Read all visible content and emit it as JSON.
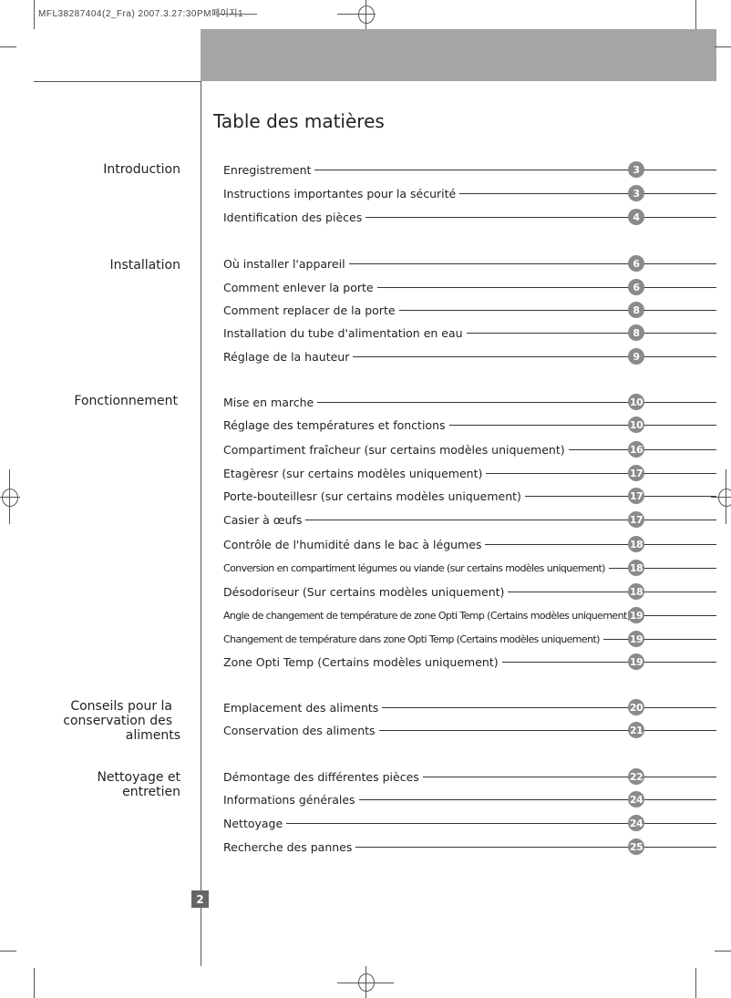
{
  "print_header": "MFL38287404(2_Fra) 2007.3.27:30PM페이지1",
  "title": "Table des matières",
  "page_number": "2",
  "colors": {
    "band": "#a5a5a5",
    "badge": "#8a8a8a",
    "page_badge": "#666666"
  },
  "sections": [
    {
      "label": "Introduction",
      "entries": [
        {
          "text": "Enregistrement",
          "page": "3"
        },
        {
          "text": "Instructions importantes pour la sécurité",
          "page": "3"
        },
        {
          "text": "Identification des pièces",
          "page": "4"
        }
      ]
    },
    {
      "label": "Installation",
      "entries": [
        {
          "text": "Où installer l'appareil",
          "page": "6"
        },
        {
          "text": "Comment enlever la porte",
          "page": "6"
        },
        {
          "text": "Comment replacer de la porte",
          "page": "8"
        },
        {
          "text": "Installation du tube d'alimentation en eau",
          "page": "8"
        },
        {
          "text": "Réglage de la hauteur",
          "page": "9"
        }
      ]
    },
    {
      "label": "Fonctionnement",
      "entries": [
        {
          "text": "Mise en marche",
          "page": "10"
        },
        {
          "text": "Réglage des températures et fonctions",
          "page": "10"
        },
        {
          "text": "Compartiment fraîcheur (sur certains modèles uniquement)",
          "page": "16"
        },
        {
          "text": "Etagèresr (sur certains modèles uniquement)",
          "page": "17"
        },
        {
          "text": "Porte-bouteillesr (sur certains modèles uniquement)",
          "page": "17"
        },
        {
          "text": "Casier à œufs",
          "page": "17"
        },
        {
          "text": "Contrôle de l'humidité dans le bac à légumes",
          "page": "18"
        },
        {
          "text": "Conversion en compartiment légumes ou viande (sur certains modèles uniquement)",
          "page": "18"
        },
        {
          "text": "Désodoriseur (Sur certains modèles uniquement)",
          "page": "18"
        },
        {
          "text": "Angle de changement de température de zone Opti Temp (Certains modèles uniquement)",
          "page": "19"
        },
        {
          "text": "Changement de température dans zone Opti Temp (Certains modèles uniquement)",
          "page": "19"
        },
        {
          "text": "Zone Opti Temp (Certains modèles uniquement)",
          "page": "19"
        }
      ]
    },
    {
      "label_lines": [
        "Conseils pour la",
        "conservation des",
        "aliments"
      ],
      "entries": [
        {
          "text": "Emplacement des aliments",
          "page": "20"
        },
        {
          "text": "Conservation des aliments",
          "page": "21"
        }
      ]
    },
    {
      "label_lines": [
        "Nettoyage et",
        "entretien"
      ],
      "entries": [
        {
          "text": "Démontage des différentes pièces",
          "page": "22"
        },
        {
          "text": "Informations générales",
          "page": "24"
        },
        {
          "text": "Nettoyage",
          "page": "24"
        },
        {
          "text": "Recherche des pannes",
          "page": "25"
        }
      ]
    }
  ]
}
